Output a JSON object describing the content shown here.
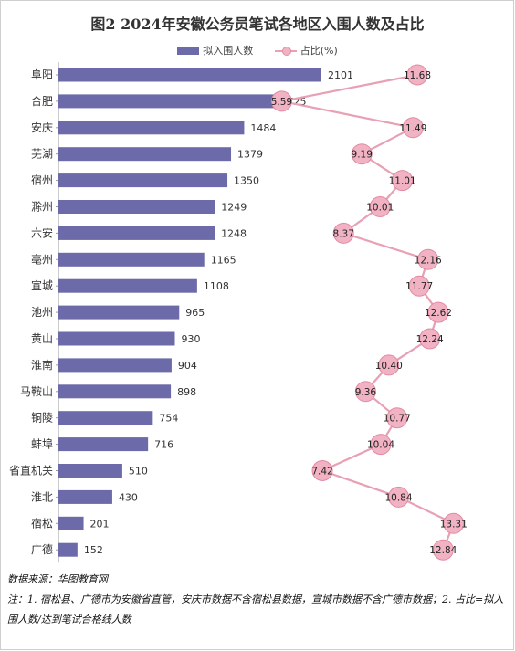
{
  "title": "图2  2024年安徽公务员笔试各地区入围人数及占比",
  "legend": {
    "bar_label": "拟入围人数",
    "line_label": "占比(%)"
  },
  "colors": {
    "bar": "#6c6aa8",
    "line": "#e8a0b4",
    "marker_fill": "#f1b2c3",
    "marker_stroke": "#e38aa3"
  },
  "chart_data": {
    "type": "bar",
    "orientation": "horizontal",
    "categories": [
      "阜阳",
      "合肥",
      "安庆",
      "芜湖",
      "宿州",
      "滁州",
      "六安",
      "亳州",
      "宣城",
      "池州",
      "黄山",
      "淮南",
      "马鞍山",
      "铜陵",
      "蚌埠",
      "省直机关",
      "淮北",
      "宿松",
      "广德"
    ],
    "series": [
      {
        "name": "拟入围人数",
        "type": "bar",
        "values": [
          2101,
          1725,
          1484,
          1379,
          1350,
          1249,
          1248,
          1165,
          1108,
          965,
          930,
          904,
          898,
          754,
          716,
          510,
          430,
          201,
          152
        ]
      },
      {
        "name": "占比(%)",
        "type": "line",
        "values": [
          11.68,
          5.59,
          11.49,
          9.19,
          11.01,
          10.01,
          8.37,
          12.16,
          11.77,
          12.62,
          12.24,
          10.4,
          9.36,
          10.77,
          10.04,
          7.42,
          10.84,
          13.31,
          12.84
        ],
        "labels": [
          "11.68",
          "5.59",
          "11.49",
          "9.19",
          "11.01",
          "10.01",
          "8.37",
          "12.16",
          "11.77",
          "12.62",
          "12.24",
          "10.40",
          "9.36",
          "10.77",
          "10.04",
          "7.42",
          "10.84",
          "13.31",
          "12.84"
        ]
      }
    ],
    "bar_xlim": [
      0,
      2500
    ],
    "line_xlim": [
      0,
      14.5
    ],
    "grid": false,
    "legend_position": "top"
  },
  "notes": {
    "source": "数据来源：华图教育网",
    "note": "注：1. 宿松县、广德市为安徽省直管，安庆市数据不含宿松县数据，宣城市数据不含广德市数据；2. 占比=拟入围人数/达到笔试合格线人数"
  }
}
